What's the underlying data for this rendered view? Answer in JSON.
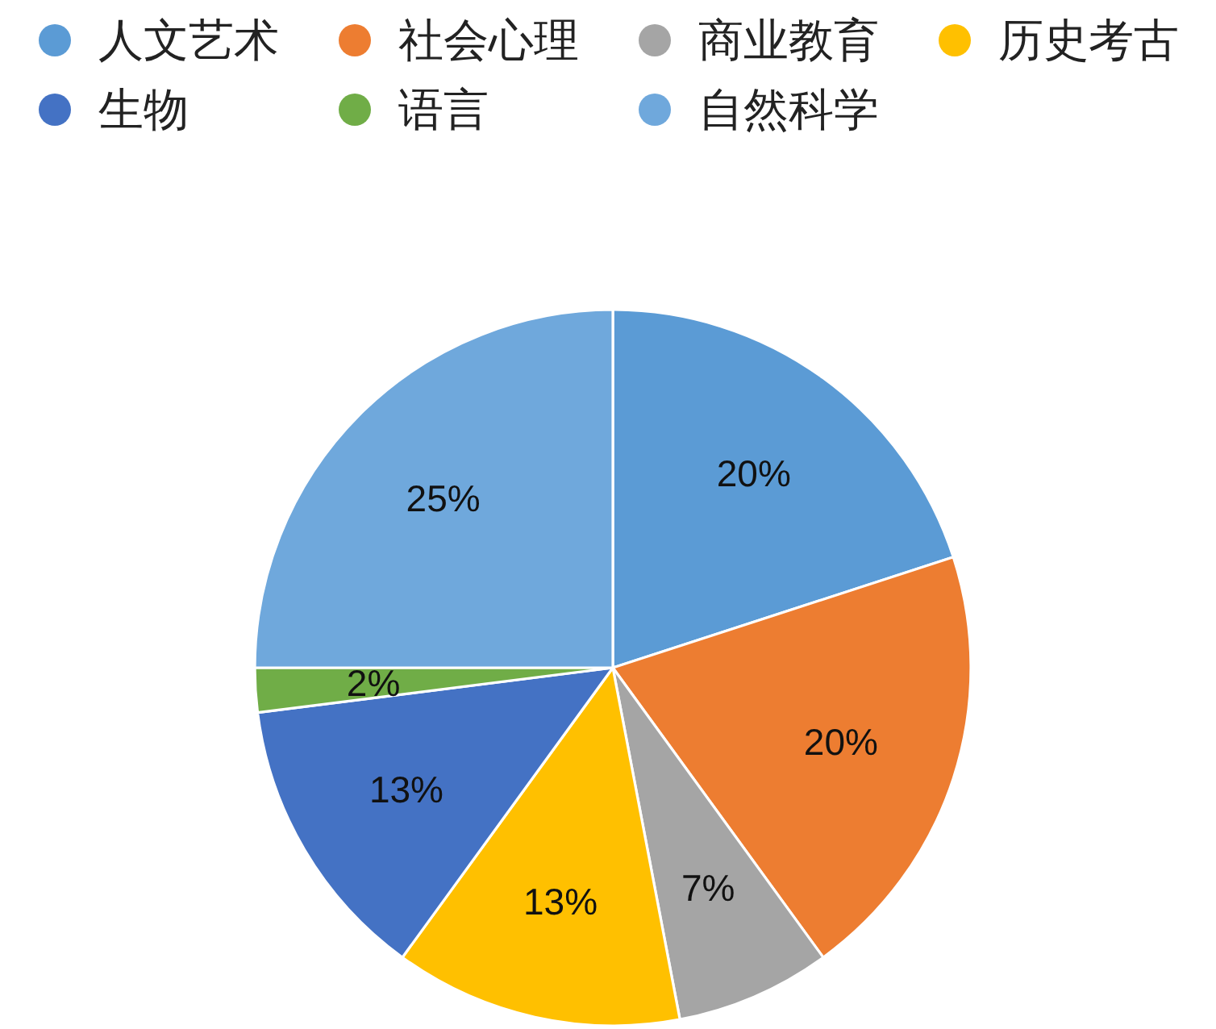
{
  "chart_data": {
    "type": "pie",
    "categories": [
      "人文艺术",
      "社会心理",
      "商业教育",
      "历史考古",
      "生物",
      "语言",
      "自然科学"
    ],
    "values": [
      20,
      20,
      7,
      13,
      13,
      2,
      25
    ],
    "colors": [
      "#5b9bd5",
      "#ed7d31",
      "#a5a5a5",
      "#ffc000",
      "#4472c4",
      "#70ad47",
      "#6fa8dc"
    ],
    "value_labels": [
      "20%",
      "20%",
      "7%",
      "13%",
      "13%",
      "2%",
      "25%"
    ],
    "legend": "top"
  }
}
